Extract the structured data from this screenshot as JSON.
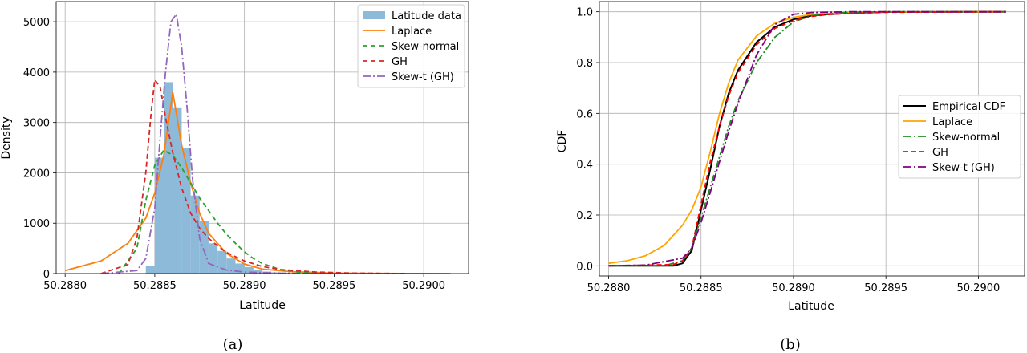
{
  "chart_data": [
    {
      "type": "histogram",
      "caption": "(a)",
      "xlabel": "Latitude",
      "ylabel": "Density",
      "xlim": [
        50.28795,
        50.29025
      ],
      "ylim": [
        0,
        5400
      ],
      "xticks": [
        50.288,
        50.2885,
        50.289,
        50.2895,
        50.29
      ],
      "xtick_labels": [
        "50.2880",
        "50.2885",
        "50.2890",
        "50.2895",
        "50.2900"
      ],
      "yticks": [
        0,
        1000,
        2000,
        3000,
        4000,
        5000
      ],
      "ytick_labels": [
        "0",
        "1000",
        "2000",
        "3000",
        "4000",
        "5000"
      ],
      "grid": true,
      "legend_position": "top-right",
      "histogram": {
        "name": "Latitude data",
        "bin_width": 5e-05,
        "bin_edges_start": 50.28845,
        "densities": [
          150,
          2300,
          3800,
          3300,
          2500,
          1550,
          1050,
          600,
          450,
          300,
          200,
          130,
          80,
          40,
          25,
          15,
          10,
          8,
          5,
          4,
          3,
          2,
          2,
          1,
          1,
          1,
          1,
          1,
          1,
          1,
          1,
          1,
          1,
          1,
          1,
          1
        ]
      },
      "series": [
        {
          "name": "Laplace",
          "x": [
            50.288,
            50.2882,
            50.28835,
            50.28845,
            50.2885,
            50.28855,
            50.2886,
            50.28865,
            50.2887,
            50.28875,
            50.2888,
            50.2889,
            50.289,
            50.2891,
            50.28925,
            50.2895,
            50.28975,
            50.29,
            50.29015
          ],
          "y": [
            60,
            250,
            600,
            1100,
            1600,
            2350,
            3600,
            2550,
            1800,
            1200,
            800,
            400,
            190,
            90,
            40,
            10,
            3,
            1,
            0
          ]
        },
        {
          "name": "Skew-normal",
          "x": [
            50.2883,
            50.2884,
            50.28845,
            50.2885,
            50.28855,
            50.2886,
            50.28865,
            50.2887,
            50.28875,
            50.2888,
            50.28885,
            50.2889,
            50.28895,
            50.289,
            50.28905,
            50.2891,
            50.2892,
            50.2893,
            50.2894,
            50.2895
          ],
          "y": [
            0,
            500,
            1450,
            2150,
            2450,
            2350,
            2100,
            1800,
            1500,
            1250,
            1000,
            780,
            600,
            430,
            300,
            200,
            80,
            30,
            10,
            0
          ]
        },
        {
          "name": "GH",
          "x": [
            50.2882,
            50.28835,
            50.2884,
            50.28845,
            50.28848,
            50.2885,
            50.28853,
            50.28856,
            50.2886,
            50.28865,
            50.2887,
            50.28875,
            50.2888,
            50.28885,
            50.2889,
            50.289,
            50.2891,
            50.2892,
            50.2894,
            50.2896,
            50.2899
          ],
          "y": [
            0,
            180,
            700,
            2000,
            3200,
            3850,
            3700,
            3100,
            2400,
            1700,
            1200,
            900,
            700,
            550,
            420,
            250,
            140,
            80,
            30,
            10,
            0
          ]
        },
        {
          "name": "Skew-t (GH)",
          "x": [
            50.2882,
            50.2884,
            50.28845,
            50.2885,
            50.28853,
            50.28856,
            50.28859,
            50.28862,
            50.28865,
            50.28868,
            50.28871,
            50.28875,
            50.2888,
            50.2889,
            50.289,
            50.2892,
            50.2894,
            50.2899
          ],
          "y": [
            0,
            60,
            300,
            1300,
            2700,
            4000,
            5000,
            5150,
            4500,
            3300,
            1900,
            700,
            200,
            70,
            30,
            8,
            2,
            0
          ]
        }
      ]
    },
    {
      "type": "line",
      "caption": "(b)",
      "xlabel": "Latitude",
      "ylabel": "CDF",
      "xlim": [
        50.28795,
        50.29025
      ],
      "ylim": [
        -0.04,
        1.04
      ],
      "xticks": [
        50.288,
        50.2885,
        50.289,
        50.2895,
        50.29
      ],
      "xtick_labels": [
        "50.2880",
        "50.2885",
        "50.2890",
        "50.2895",
        "50.2900"
      ],
      "yticks": [
        0,
        0.2,
        0.4,
        0.6,
        0.8,
        1.0
      ],
      "ytick_labels": [
        "0.0",
        "0.2",
        "0.4",
        "0.6",
        "0.8",
        "1.0"
      ],
      "grid": true,
      "legend_position": "center-right",
      "series": [
        {
          "name": "Empirical CDF",
          "x": [
            50.288,
            50.28835,
            50.2884,
            50.28845,
            50.2885,
            50.28855,
            50.2886,
            50.28865,
            50.2887,
            50.2888,
            50.2889,
            50.289,
            50.2891,
            50.2892,
            50.2893,
            50.2895,
            50.29,
            50.29015
          ],
          "y": [
            0,
            0,
            0.01,
            0.06,
            0.22,
            0.38,
            0.55,
            0.68,
            0.77,
            0.88,
            0.94,
            0.97,
            0.985,
            0.99,
            0.995,
            0.999,
            1.0,
            1.0
          ]
        },
        {
          "name": "Laplace",
          "x": [
            50.288,
            50.2881,
            50.2882,
            50.2883,
            50.2884,
            50.28845,
            50.2885,
            50.28855,
            50.2886,
            50.28865,
            50.2887,
            50.2888,
            50.2889,
            50.289,
            50.2891,
            50.2893,
            50.2895,
            50.29,
            50.29015
          ],
          "y": [
            0.01,
            0.02,
            0.04,
            0.08,
            0.16,
            0.22,
            0.31,
            0.45,
            0.6,
            0.72,
            0.81,
            0.905,
            0.955,
            0.978,
            0.99,
            0.997,
            0.999,
            1.0,
            1.0
          ]
        },
        {
          "name": "Skew-normal",
          "x": [
            50.288,
            50.2883,
            50.2884,
            50.28845,
            50.2885,
            50.28855,
            50.2886,
            50.28865,
            50.2887,
            50.2888,
            50.2889,
            50.289,
            50.2891,
            50.2893,
            50.2895,
            50.29,
            50.29015
          ],
          "y": [
            0,
            0,
            0.02,
            0.07,
            0.19,
            0.31,
            0.43,
            0.55,
            0.65,
            0.8,
            0.9,
            0.96,
            0.985,
            0.998,
            1.0,
            1.0,
            1.0
          ]
        },
        {
          "name": "GH",
          "x": [
            50.288,
            50.28835,
            50.2884,
            50.28845,
            50.2885,
            50.28855,
            50.2886,
            50.28865,
            50.2887,
            50.2888,
            50.2889,
            50.289,
            50.2891,
            50.2892,
            50.2895,
            50.29,
            50.29015
          ],
          "y": [
            0,
            0.005,
            0.02,
            0.07,
            0.24,
            0.41,
            0.55,
            0.67,
            0.76,
            0.87,
            0.935,
            0.965,
            0.982,
            0.99,
            0.998,
            1.0,
            1.0
          ]
        },
        {
          "name": "Skew-t (GH)",
          "x": [
            50.288,
            50.2882,
            50.2884,
            50.28845,
            50.2885,
            50.28855,
            50.2886,
            50.28865,
            50.2887,
            50.2888,
            50.2889,
            50.289,
            50.2891,
            50.2893,
            50.2895,
            50.29,
            50.29015
          ],
          "y": [
            0,
            0.003,
            0.03,
            0.07,
            0.17,
            0.29,
            0.41,
            0.53,
            0.64,
            0.83,
            0.95,
            0.99,
            0.997,
            1.0,
            1.0,
            1.0,
            1.0
          ]
        }
      ]
    }
  ],
  "colors": {
    "histogram": "#8ebad9",
    "Laplace_a": "#ff7f0e",
    "Laplace_b": "#ffa500",
    "Skew-normal": "#2ca02c",
    "Skew-normal_b": "#228b22",
    "GH": "#d62728",
    "GH_b": "#ff0000",
    "Skew-t (GH)_a": "#9467bd",
    "Skew-t (GH)_b": "#800080",
    "Empirical CDF": "#000000",
    "grid": "#b0b0b0"
  }
}
